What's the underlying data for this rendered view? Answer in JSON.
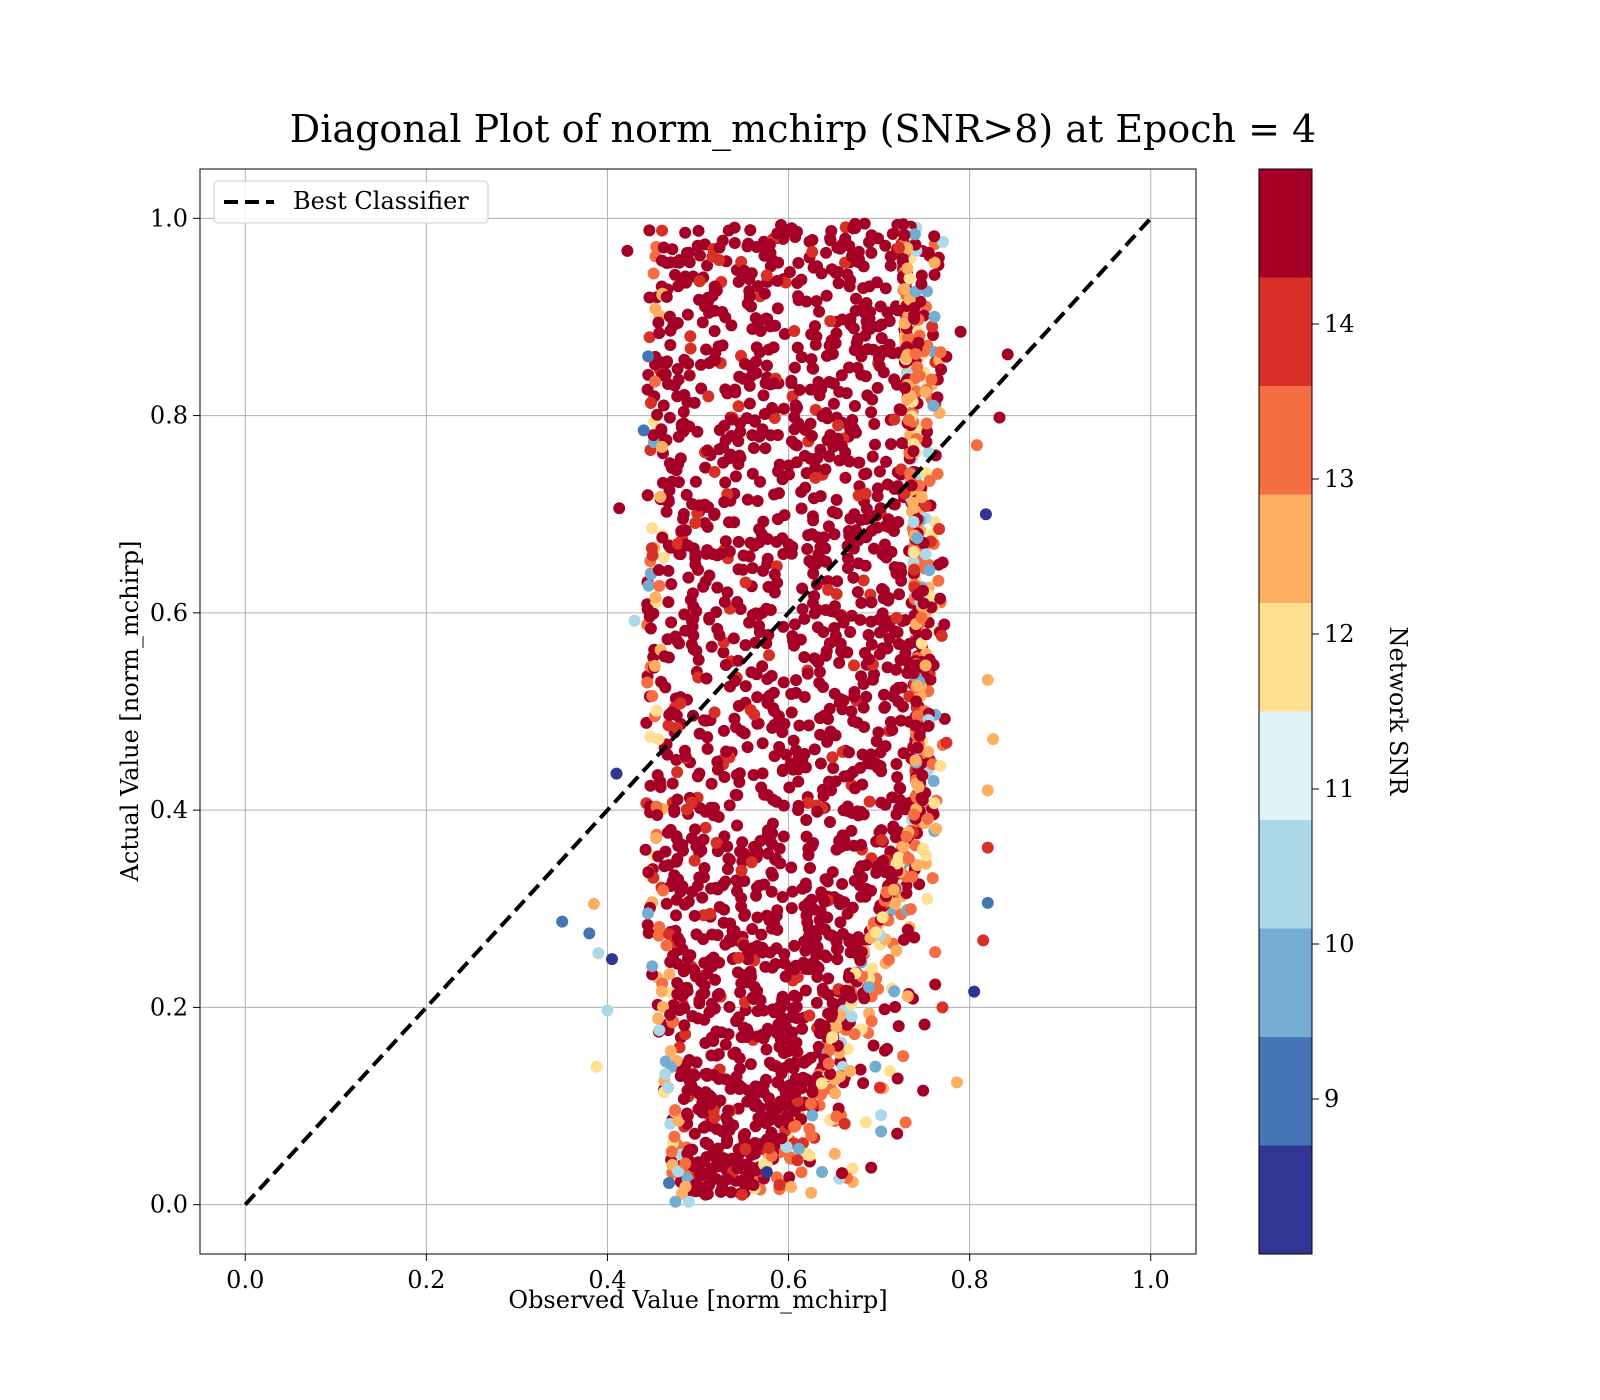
{
  "chart_data": {
    "type": "scatter",
    "title": "Diagonal Plot of norm_mchirp (SNR>8) at Epoch = 4",
    "xlabel": "Observed Value [norm_mchirp]",
    "ylabel": "Actual Value [norm_mchirp]",
    "xlim": [
      -0.05,
      1.05
    ],
    "ylim": [
      -0.05,
      1.05
    ],
    "xticks": [
      "0.0",
      "0.2",
      "0.4",
      "0.6",
      "0.8",
      "1.0"
    ],
    "yticks": [
      "0.0",
      "0.2",
      "0.4",
      "0.6",
      "0.8",
      "1.0"
    ],
    "grid": true,
    "legend": {
      "position": "top-left",
      "entries": [
        {
          "label": "Best Classifier",
          "style": "dashed",
          "color": "#000000"
        }
      ]
    },
    "reference_line": {
      "name": "Best Classifier",
      "x": [
        0.0,
        1.0
      ],
      "y": [
        0.0,
        1.0
      ],
      "style": "dashed",
      "color": "#000000"
    },
    "colorbar": {
      "label": "Network SNR",
      "range": [
        8,
        15
      ],
      "ticks": [
        "9",
        "10",
        "11",
        "12",
        "13",
        "14"
      ],
      "levels": [
        {
          "from": 8.0,
          "to": 8.7,
          "color": "#313695"
        },
        {
          "from": 8.7,
          "to": 9.4,
          "color": "#4575b4"
        },
        {
          "from": 9.4,
          "to": 10.1,
          "color": "#74add1"
        },
        {
          "from": 10.1,
          "to": 10.8,
          "color": "#abd9e9"
        },
        {
          "from": 10.8,
          "to": 11.5,
          "color": "#e0f3f8"
        },
        {
          "from": 11.5,
          "to": 12.2,
          "color": "#fee090"
        },
        {
          "from": 12.2,
          "to": 12.9,
          "color": "#fdae61"
        },
        {
          "from": 12.9,
          "to": 13.6,
          "color": "#f46d43"
        },
        {
          "from": 13.6,
          "to": 14.3,
          "color": "#d73027"
        },
        {
          "from": 14.3,
          "to": 15.0,
          "color": "#a50026"
        }
      ]
    },
    "series": [
      {
        "points": [
          {
            "x": 0.35,
            "y": 0.287,
            "snr": 9.1
          },
          {
            "x": 0.38,
            "y": 0.275,
            "snr": 9.1
          },
          {
            "x": 0.385,
            "y": 0.305,
            "snr": 12.7
          },
          {
            "x": 0.39,
            "y": 0.255,
            "snr": 10.5
          },
          {
            "x": 0.388,
            "y": 0.14,
            "snr": 12.0
          },
          {
            "x": 0.4,
            "y": 0.197,
            "snr": 10.5
          },
          {
            "x": 0.405,
            "y": 0.249,
            "snr": 8.3
          },
          {
            "x": 0.41,
            "y": 0.437,
            "snr": 8.3
          },
          {
            "x": 0.413,
            "y": 0.706,
            "snr": 14.8
          },
          {
            "x": 0.422,
            "y": 0.967,
            "snr": 14.8
          },
          {
            "x": 0.43,
            "y": 0.592,
            "snr": 10.5
          },
          {
            "x": 0.44,
            "y": 0.785,
            "snr": 9.1
          },
          {
            "x": 0.445,
            "y": 0.86,
            "snr": 9.1
          },
          {
            "x": 0.468,
            "y": 0.022,
            "snr": 9.1
          },
          {
            "x": 0.475,
            "y": 0.003,
            "snr": 9.8
          },
          {
            "x": 0.49,
            "y": 0.003,
            "snr": 10.5
          },
          {
            "x": 0.576,
            "y": 0.033,
            "snr": 8.3
          },
          {
            "x": 0.59,
            "y": 0.02,
            "snr": 14.0
          },
          {
            "x": 0.61,
            "y": 0.045,
            "snr": 14.0
          },
          {
            "x": 0.625,
            "y": 0.012,
            "snr": 12.7
          },
          {
            "x": 0.662,
            "y": 0.082,
            "snr": 14.0
          },
          {
            "x": 0.72,
            "y": 0.072,
            "snr": 14.8
          },
          {
            "x": 0.722,
            "y": 0.97,
            "snr": 14.0
          },
          {
            "x": 0.755,
            "y": 0.965,
            "snr": 14.8
          },
          {
            "x": 0.76,
            "y": 0.81,
            "snr": 9.8
          },
          {
            "x": 0.79,
            "y": 0.885,
            "snr": 14.8
          },
          {
            "x": 0.808,
            "y": 0.77,
            "snr": 13.3
          },
          {
            "x": 0.818,
            "y": 0.7,
            "snr": 8.3
          },
          {
            "x": 0.842,
            "y": 0.862,
            "snr": 14.8
          },
          {
            "x": 0.833,
            "y": 0.798,
            "snr": 14.8
          },
          {
            "x": 0.826,
            "y": 0.472,
            "snr": 12.7
          },
          {
            "x": 0.82,
            "y": 0.532,
            "snr": 12.7
          },
          {
            "x": 0.82,
            "y": 0.42,
            "snr": 12.7
          },
          {
            "x": 0.82,
            "y": 0.362,
            "snr": 14.0
          },
          {
            "x": 0.82,
            "y": 0.306,
            "snr": 9.1
          },
          {
            "x": 0.815,
            "y": 0.268,
            "snr": 14.0
          },
          {
            "x": 0.805,
            "y": 0.216,
            "snr": 8.3
          },
          {
            "x": 0.786,
            "y": 0.124,
            "snr": 12.7
          },
          {
            "x": 0.77,
            "y": 0.2,
            "snr": 14.0
          }
        ]
      }
    ]
  }
}
